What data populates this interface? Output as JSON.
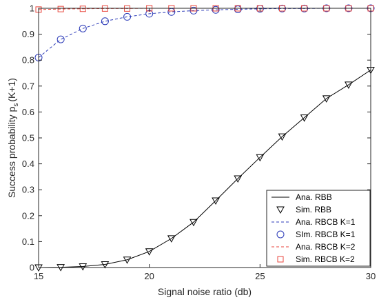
{
  "chart_data": {
    "type": "line",
    "xlabel": "Signal noise ratio (db)",
    "ylabel": "Success probability p",
    "ylabel_sub": "s",
    "ylabel_suffix": "(K+1)",
    "xlim": [
      15,
      30
    ],
    "ylim": [
      0,
      1
    ],
    "x_ticks": [
      15,
      20,
      25,
      30
    ],
    "y_ticks": [
      0,
      0.1,
      0.2,
      0.3,
      0.4,
      0.5,
      0.6,
      0.7,
      0.8,
      0.9,
      1
    ],
    "x_tick_labels": [
      "15",
      "20",
      "25",
      "30"
    ],
    "y_tick_labels": [
      "0",
      "0.1",
      "0.2",
      "0.3",
      "0.4",
      "0.5",
      "0.6",
      "0.7",
      "0.8",
      "0.9",
      "1"
    ],
    "grid": false,
    "legend_position": "bottom-right",
    "x": [
      15,
      16,
      17,
      18,
      19,
      20,
      21,
      22,
      23,
      24,
      25,
      26,
      27,
      28,
      29,
      30
    ],
    "series": [
      {
        "name": "Ana. RBB",
        "style": "solid-line",
        "color": "#000000",
        "values": [
          0,
          0.001,
          0.004,
          0.012,
          0.03,
          0.062,
          0.112,
          0.175,
          0.258,
          0.343,
          0.425,
          0.505,
          0.578,
          0.652,
          0.705,
          0.762
        ]
      },
      {
        "name": "Sim. RBB",
        "style": "down-triangle-marker",
        "color": "#000000",
        "values": [
          0,
          0.001,
          0.004,
          0.012,
          0.03,
          0.062,
          0.112,
          0.175,
          0.258,
          0.343,
          0.425,
          0.505,
          0.578,
          0.652,
          0.705,
          0.762
        ]
      },
      {
        "name": "Ana. RBCB K=1",
        "style": "dashed-line",
        "color": "#2b3ab8",
        "values": [
          0.81,
          0.88,
          0.922,
          0.95,
          0.967,
          0.979,
          0.986,
          0.991,
          0.994,
          0.996,
          0.998,
          0.999,
          0.999,
          1.0,
          1.0,
          1.0
        ]
      },
      {
        "name": "SIm. RBCB K=1",
        "style": "circle-marker",
        "color": "#2b3ab8",
        "values": [
          0.81,
          0.88,
          0.922,
          0.95,
          0.967,
          0.979,
          0.986,
          0.991,
          0.994,
          0.996,
          0.998,
          0.999,
          0.999,
          1.0,
          1.0,
          1.0
        ]
      },
      {
        "name": "Ana. RBCB K=2",
        "style": "dashed-line",
        "color": "#e8463c",
        "values": [
          0.995,
          0.997,
          0.998,
          0.999,
          0.999,
          1.0,
          1.0,
          1.0,
          1.0,
          1.0,
          1.0,
          1.0,
          1.0,
          1.0,
          1.0,
          1.0
        ]
      },
      {
        "name": "Sim. RBCB K=2",
        "style": "square-marker",
        "color": "#e8463c",
        "values": [
          0.995,
          0.997,
          0.998,
          0.999,
          0.999,
          1.0,
          1.0,
          1.0,
          1.0,
          1.0,
          1.0,
          1.0,
          1.0,
          1.0,
          1.0,
          1.0
        ]
      }
    ]
  }
}
